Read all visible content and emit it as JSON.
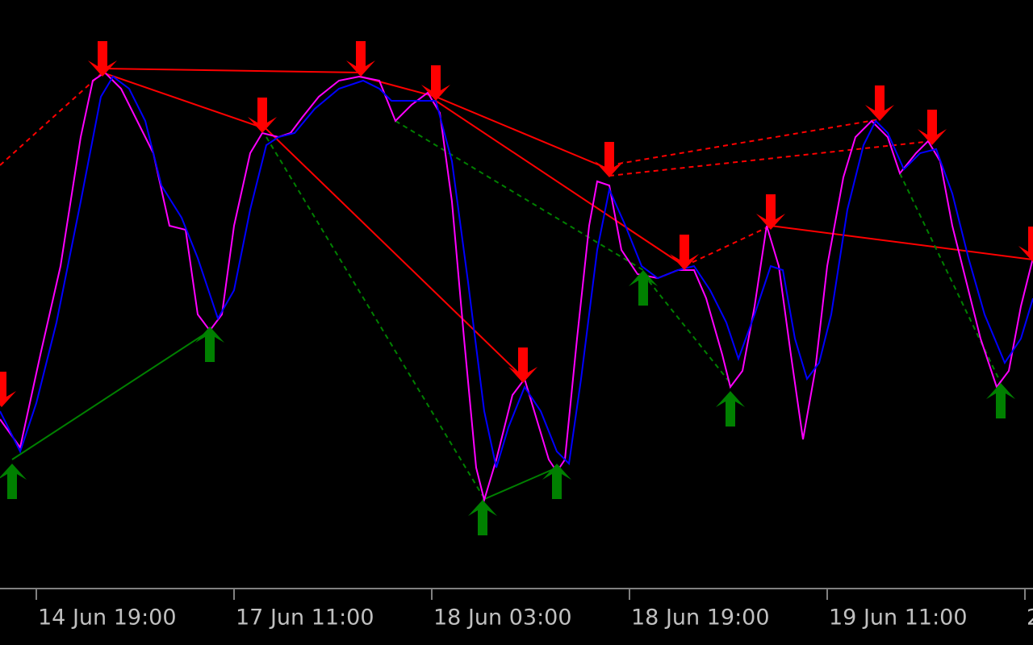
{
  "chart_data": {
    "type": "line",
    "xlim": [
      0,
      1280
    ],
    "ylim": [
      0,
      730
    ],
    "xticks": [
      {
        "value": 45,
        "label": "14 Jun 19:00"
      },
      {
        "value": 290,
        "label": "17 Jun 11:00"
      },
      {
        "value": 535,
        "label": "18 Jun 03:00"
      },
      {
        "value": 780,
        "label": "18 Jun 19:00"
      },
      {
        "value": 1025,
        "label": "19 Jun 11:00"
      },
      {
        "value": 1270,
        "label": "2"
      }
    ],
    "series": [
      {
        "color": "#ff00ff",
        "x": [
          0,
          25,
          50,
          75,
          100,
          115,
          130,
          150,
          170,
          190,
          210,
          230,
          245,
          260,
          275,
          290,
          310,
          325,
          345,
          360,
          375,
          395,
          420,
          445,
          470,
          490,
          510,
          530,
          545,
          560,
          575,
          590,
          600,
          615,
          635,
          650,
          665,
          680,
          690,
          700,
          715,
          730,
          740,
          755,
          770,
          790,
          815,
          840,
          860,
          875,
          895,
          905,
          920,
          935,
          950,
          965,
          980,
          995,
          1010,
          1025,
          1045,
          1060,
          1080,
          1100,
          1115,
          1135,
          1150,
          1165,
          1180,
          1200,
          1215,
          1235,
          1250,
          1265,
          1280
        ],
        "values": [
          210,
          175,
          290,
          400,
          560,
          630,
          640,
          620,
          580,
          540,
          450,
          445,
          340,
          320,
          340,
          450,
          540,
          565,
          560,
          565,
          585,
          610,
          630,
          635,
          630,
          580,
          600,
          615,
          590,
          480,
          310,
          150,
          110,
          160,
          240,
          260,
          210,
          160,
          145,
          160,
          310,
          450,
          505,
          500,
          420,
          390,
          385,
          395,
          395,
          360,
          290,
          250,
          270,
          350,
          450,
          400,
          290,
          185,
          270,
          400,
          510,
          560,
          580,
          560,
          515,
          540,
          555,
          530,
          450,
          370,
          310,
          250,
          270,
          350,
          410
        ]
      },
      {
        "color": "#0000ff",
        "x": [
          0,
          25,
          45,
          70,
          100,
          125,
          140,
          160,
          180,
          200,
          225,
          245,
          270,
          290,
          310,
          330,
          345,
          365,
          390,
          420,
          450,
          470,
          485,
          510,
          540,
          560,
          580,
          600,
          615,
          630,
          650,
          670,
          690,
          705,
          720,
          740,
          755,
          775,
          795,
          815,
          840,
          860,
          880,
          900,
          915,
          935,
          955,
          970,
          985,
          1000,
          1015,
          1030,
          1050,
          1070,
          1085,
          1100,
          1120,
          1140,
          1160,
          1180,
          1200,
          1220,
          1245,
          1265,
          1280
        ],
        "values": [
          220,
          170,
          230,
          330,
          480,
          610,
          635,
          620,
          580,
          500,
          460,
          410,
          335,
          370,
          470,
          550,
          560,
          565,
          595,
          620,
          630,
          620,
          605,
          605,
          605,
          530,
          380,
          220,
          150,
          200,
          250,
          220,
          170,
          155,
          260,
          420,
          495,
          450,
          400,
          385,
          395,
          400,
          370,
          330,
          285,
          340,
          400,
          395,
          310,
          260,
          280,
          340,
          470,
          550,
          580,
          565,
          520,
          540,
          545,
          490,
          410,
          340,
          280,
          310,
          360
        ]
      }
    ],
    "signals": [
      {
        "direction": "down",
        "color": "#ff0000",
        "x": [
          127,
          325,
          447,
          540,
          755,
          848,
          955,
          1090,
          1155,
          648,
          2,
          1280
        ],
        "values": [
          635,
          565,
          635,
          605,
          510,
          395,
          445,
          580,
          550,
          255,
          225,
          405
        ]
      },
      {
        "direction": "up",
        "color": "#008000",
        "x": [
          15,
          260,
          598,
          690,
          797,
          905,
          1240
        ],
        "values": [
          155,
          325,
          110,
          155,
          395,
          245,
          255
        ]
      }
    ],
    "trendlines": [
      {
        "color": "#ff0000",
        "dashed": false,
        "x": [
          127,
          447
        ],
        "values": [
          645,
          640
        ]
      },
      {
        "color": "#ff0000",
        "dashed": false,
        "x": [
          127,
          330,
          648
        ],
        "values": [
          640,
          570,
          262
        ]
      },
      {
        "color": "#ff0000",
        "dashed": false,
        "x": [
          447,
          540,
          755
        ],
        "values": [
          635,
          610,
          520
        ]
      },
      {
        "color": "#ff0000",
        "dashed": false,
        "x": [
          540,
          848
        ],
        "values": [
          605,
          400
        ]
      },
      {
        "color": "#ff0000",
        "dashed": false,
        "x": [
          955,
          1280
        ],
        "values": [
          450,
          408
        ]
      },
      {
        "color": "#ff0000",
        "dashed": true,
        "x": [
          0,
          127
        ],
        "values": [
          525,
          640
        ]
      },
      {
        "color": "#ff0000",
        "dashed": true,
        "x": [
          755,
          1090
        ],
        "values": [
          525,
          582
        ]
      },
      {
        "color": "#ff0000",
        "dashed": true,
        "x": [
          755,
          1155
        ],
        "values": [
          512,
          555
        ]
      },
      {
        "color": "#ff0000",
        "dashed": true,
        "x": [
          848,
          955
        ],
        "values": [
          400,
          450
        ]
      },
      {
        "color": "#008000",
        "dashed": false,
        "x": [
          15,
          260
        ],
        "values": [
          160,
          320
        ]
      },
      {
        "color": "#008000",
        "dashed": false,
        "x": [
          598,
          690
        ],
        "values": [
          110,
          150
        ]
      },
      {
        "color": "#008000",
        "dashed": true,
        "x": [
          330,
          598
        ],
        "values": [
          560,
          115
        ]
      },
      {
        "color": "#008000",
        "dashed": true,
        "x": [
          490,
          797
        ],
        "values": [
          580,
          395
        ]
      },
      {
        "color": "#008000",
        "dashed": true,
        "x": [
          797,
          905
        ],
        "values": [
          390,
          255
        ]
      },
      {
        "color": "#008000",
        "dashed": true,
        "x": [
          1115,
          1240
        ],
        "values": [
          515,
          255
        ]
      }
    ]
  }
}
